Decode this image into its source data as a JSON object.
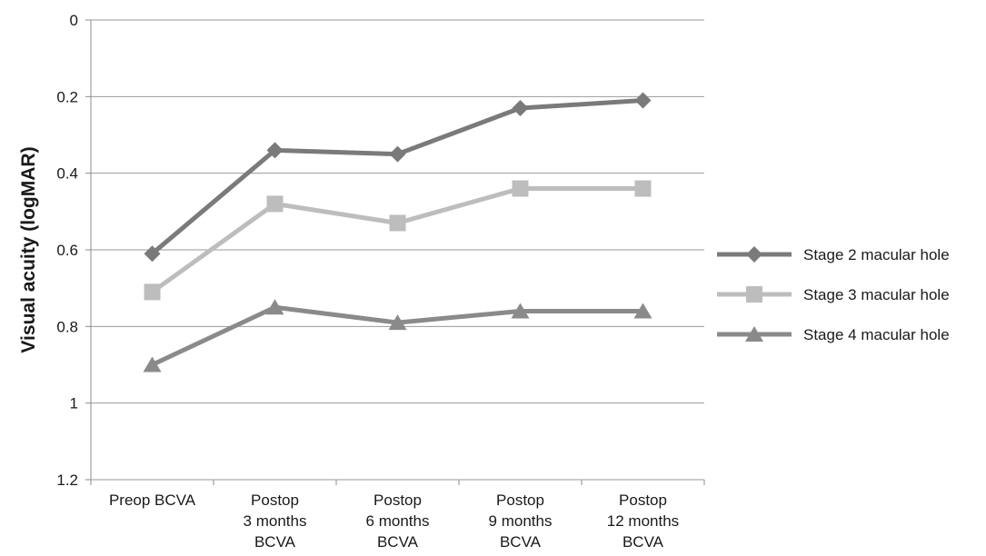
{
  "chart_data": {
    "type": "line",
    "ylabel": "Visual acuity (logMAR)",
    "yaxis_reversed": true,
    "ylim": [
      0,
      1.2
    ],
    "yticks": [
      "0",
      "0.2",
      "0.4",
      "0.6",
      "0.8",
      "1",
      "1.2"
    ],
    "grid": "horizontal",
    "legend_position": "right",
    "categories": [
      [
        "Preop BCVA"
      ],
      [
        "Postop",
        "3 months",
        "BCVA"
      ],
      [
        "Postop",
        "6 months",
        "BCVA"
      ],
      [
        "Postop",
        "9 months",
        "BCVA"
      ],
      [
        "Postop",
        "12 months",
        "BCVA"
      ]
    ],
    "series": [
      {
        "name": "Stage 2 macular hole",
        "marker": "diamond",
        "color": "#7a7a7a",
        "values": [
          0.61,
          0.34,
          0.35,
          0.23,
          0.21
        ]
      },
      {
        "name": "Stage 3 macular hole",
        "marker": "square",
        "color": "#bdbdbd",
        "values": [
          0.71,
          0.48,
          0.53,
          0.44,
          0.44
        ]
      },
      {
        "name": "Stage 4 macular hole",
        "marker": "triangle",
        "color": "#8a8a8a",
        "values": [
          0.9,
          0.75,
          0.79,
          0.76,
          0.76
        ]
      }
    ]
  }
}
